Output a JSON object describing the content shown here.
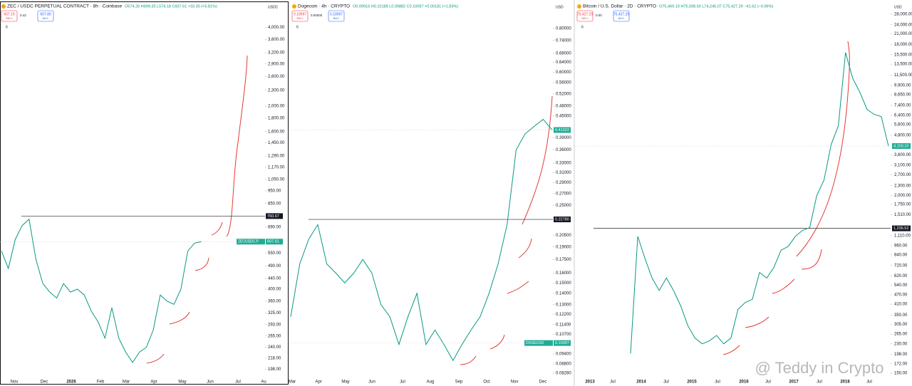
{
  "chart_data": [
    {
      "type": "line",
      "log_scale": true,
      "color": "#089981",
      "title": "ZEC / USDC PERPETUAL CONTRACT · 8h · Coinbase",
      "ohlc": "O574.26 H699.35 L574.18 C607.61 +33.35 (+5.81%)",
      "sell": "607.19",
      "sell_label": "SELL",
      "spread": "0.42",
      "buy": "607.80",
      "buy_label": "BUY",
      "currency": "USDC",
      "indicator": "6",
      "x_axis_labels": [
        "Nov",
        "Dec",
        "2026",
        "Feb",
        "Mar",
        "Apr",
        "May",
        "Jun",
        "Jul",
        "Au"
      ],
      "values": [
        560,
        480,
        620,
        700,
        740,
        520,
        420,
        390,
        370,
        420,
        390,
        400,
        380,
        330,
        300,
        260,
        340,
        260,
        230,
        210,
        230,
        240,
        280,
        380,
        360,
        350,
        400,
        560,
        600,
        607.61
      ],
      "ylim": [
        184,
        4780
      ],
      "yticks": [
        {
          "value": 4000,
          "label": "4,000.00"
        },
        {
          "value": 3600,
          "label": "3,600.00"
        },
        {
          "value": 3200,
          "label": "3,200.00"
        },
        {
          "value": 2900,
          "label": "2,900.00"
        },
        {
          "value": 2600,
          "label": "2,600.00"
        },
        {
          "value": 2300,
          "label": "2,300.00"
        },
        {
          "value": 2000,
          "label": "2,000.00"
        },
        {
          "value": 1800,
          "label": "1,800.00"
        },
        {
          "value": 1600,
          "label": "1,600.00"
        },
        {
          "value": 1450,
          "label": "1,450.00"
        },
        {
          "value": 1290,
          "label": "1,290.00"
        },
        {
          "value": 1170,
          "label": "1,170.00"
        },
        {
          "value": 1050,
          "label": "1,050.00"
        },
        {
          "value": 950,
          "label": "950.00"
        },
        {
          "value": 850,
          "label": "850.00"
        },
        {
          "value": 690,
          "label": "690.00"
        },
        {
          "value": 550,
          "label": "550.00"
        },
        {
          "value": 490,
          "label": "490.00"
        },
        {
          "value": 440,
          "label": "440.00"
        },
        {
          "value": 400,
          "label": "400.00"
        },
        {
          "value": 360,
          "label": "360.00"
        },
        {
          "value": 325,
          "label": "325.00"
        },
        {
          "value": 293,
          "label": "293.00"
        },
        {
          "value": 265,
          "label": "265.00"
        },
        {
          "value": 240,
          "label": "240.00"
        },
        {
          "value": 218,
          "label": "218.00"
        },
        {
          "value": 198,
          "label": "198.00"
        }
      ],
      "level": {
        "value": 760.67,
        "label": "760.67"
      },
      "price_tags": [
        {
          "value": 607.61,
          "label": "607.61",
          "symbol": "ZECUSDC.P"
        }
      ]
    },
    {
      "type": "line",
      "log_scale": true,
      "color": "#089981",
      "title": "Dogecoin · 4h · CRYPTO",
      "ohlc": "O0.09916 H0.10188 L0.09882 C0.10097 +0.00181 (+1.83%)",
      "sell": "0.10097",
      "sell_label": "SELL",
      "spread": "0.00000",
      "buy": "0.10097",
      "buy_label": "BUY",
      "currency": "USD",
      "indicator": "6",
      "x_axis_labels": [
        "Mar",
        "Apr",
        "May",
        "Jun",
        "Jul",
        "Aug",
        "Sep",
        "Oct",
        "Nov",
        "Dec"
      ],
      "values": [
        0.12,
        0.17,
        0.2,
        0.22,
        0.17,
        0.16,
        0.15,
        0.16,
        0.175,
        0.16,
        0.13,
        0.12,
        0.1,
        0.12,
        0.14,
        0.1,
        0.11,
        0.1,
        0.09,
        0.1,
        0.11,
        0.12,
        0.14,
        0.17,
        0.22,
        0.36,
        0.4,
        0.42,
        0.44,
        0.41022
      ],
      "ylim": [
        0.0805,
        0.921
      ],
      "yticks": [
        {
          "value": 0.8,
          "label": "0.80000"
        },
        {
          "value": 0.74,
          "label": "0.74000"
        },
        {
          "value": 0.68,
          "label": "0.68000"
        },
        {
          "value": 0.64,
          "label": "0.64000"
        },
        {
          "value": 0.6,
          "label": "0.60000"
        },
        {
          "value": 0.56,
          "label": "0.56000"
        },
        {
          "value": 0.52,
          "label": "0.52000"
        },
        {
          "value": 0.48,
          "label": "0.48000"
        },
        {
          "value": 0.45,
          "label": "0.45000"
        },
        {
          "value": 0.39,
          "label": "0.39000"
        },
        {
          "value": 0.36,
          "label": "0.36000"
        },
        {
          "value": 0.33,
          "label": "0.33000"
        },
        {
          "value": 0.31,
          "label": "0.31000"
        },
        {
          "value": 0.29,
          "label": "0.29000"
        },
        {
          "value": 0.27,
          "label": "0.27000"
        },
        {
          "value": 0.25,
          "label": "0.25000"
        },
        {
          "value": 0.205,
          "label": "0.20500"
        },
        {
          "value": 0.19,
          "label": "0.19000"
        },
        {
          "value": 0.175,
          "label": "0.17500"
        },
        {
          "value": 0.16,
          "label": "0.16000"
        },
        {
          "value": 0.15,
          "label": "0.15000"
        },
        {
          "value": 0.14,
          "label": "0.14000"
        },
        {
          "value": 0.13,
          "label": "0.13000"
        },
        {
          "value": 0.122,
          "label": "0.12200"
        },
        {
          "value": 0.114,
          "label": "0.11400"
        },
        {
          "value": 0.107,
          "label": "0.10700"
        },
        {
          "value": 0.094,
          "label": "0.09400"
        },
        {
          "value": 0.088,
          "label": "0.08800"
        },
        {
          "value": 0.0828,
          "label": "0.08280"
        }
      ],
      "level": {
        "value": 0.2278,
        "label": "0.22780"
      },
      "price_tags": [
        {
          "value": 0.41022,
          "label": "0.41022"
        },
        {
          "value": 0.10097,
          "label": "0.10097",
          "symbol": "DOGEUSD"
        }
      ]
    },
    {
      "type": "line",
      "log_scale": true,
      "color": "#089981",
      "title": "Bitcoin / U.S. Dollar · 2D · CRYPTO",
      "ohlc": "O75,469.19 H75,598.50 L74,245.07 C75,427.29 −41.62 (−0.06%)",
      "sell": "75,427.29",
      "sell_label": "SELL",
      "spread": "0.00",
      "buy": "75,427.29",
      "buy_label": "BUY",
      "currency": "USD",
      "indicator": "6",
      "x_axis_labels": [
        "2013",
        "Jul",
        "2014",
        "Jul",
        "2015",
        "Jul",
        "2016",
        "Jul",
        "2017",
        "Jul",
        "2018",
        "Jul"
      ],
      "values": [
        200,
        1100,
        800,
        600,
        500,
        600,
        500,
        400,
        300,
        250,
        230,
        240,
        260,
        230,
        250,
        380,
        420,
        440,
        650,
        600,
        700,
        900,
        950,
        1100,
        1200,
        1250,
        2000,
        2500,
        4200,
        5500,
        16000,
        11000,
        9000,
        7000,
        6500,
        6300,
        4100.1
      ],
      "ylim": [
        141,
        31000
      ],
      "yticks": [
        {
          "value": 28000,
          "label": "28,000.00"
        },
        {
          "value": 24000,
          "label": "24,000.00"
        },
        {
          "value": 21000,
          "label": "21,000.00"
        },
        {
          "value": 18000,
          "label": "18,000.00"
        },
        {
          "value": 15500,
          "label": "15,500.00"
        },
        {
          "value": 13500,
          "label": "13,500.00"
        },
        {
          "value": 11500,
          "label": "11,500.00"
        },
        {
          "value": 9900,
          "label": "9,900.00"
        },
        {
          "value": 8650,
          "label": "8,650.00"
        },
        {
          "value": 7400,
          "label": "7,400.00"
        },
        {
          "value": 6400,
          "label": "6,400.00"
        },
        {
          "value": 5600,
          "label": "5,600.00"
        },
        {
          "value": 4800,
          "label": "4,800.00"
        },
        {
          "value": 3600,
          "label": "3,600.00"
        },
        {
          "value": 3100,
          "label": "3,100.00"
        },
        {
          "value": 2700,
          "label": "2,700.00"
        },
        {
          "value": 2300,
          "label": "2,300.00"
        },
        {
          "value": 2000,
          "label": "2,000.00"
        },
        {
          "value": 1750,
          "label": "1,750.00"
        },
        {
          "value": 1510,
          "label": "1,510.00"
        },
        {
          "value": 1110,
          "label": "1,110.00"
        },
        {
          "value": 960,
          "label": "960.00"
        },
        {
          "value": 840,
          "label": "840.00"
        },
        {
          "value": 720,
          "label": "720.00"
        },
        {
          "value": 620,
          "label": "620.00"
        },
        {
          "value": 540,
          "label": "540.00"
        },
        {
          "value": 470,
          "label": "470.00"
        },
        {
          "value": 410,
          "label": "410.00"
        },
        {
          "value": 350,
          "label": "350.00"
        },
        {
          "value": 305,
          "label": "305.00"
        },
        {
          "value": 265,
          "label": "265.00"
        },
        {
          "value": 230,
          "label": "230.00"
        },
        {
          "value": 198,
          "label": "198.00"
        },
        {
          "value": 172,
          "label": "172.00"
        },
        {
          "value": 150,
          "label": "150.00"
        }
      ],
      "level": {
        "value": 1236.52,
        "label": "1,236.52"
      },
      "price_tags": [
        {
          "value": 4100.1,
          "label": "4,100.10"
        }
      ]
    }
  ],
  "watermark": "@ Teddy in Crypto"
}
